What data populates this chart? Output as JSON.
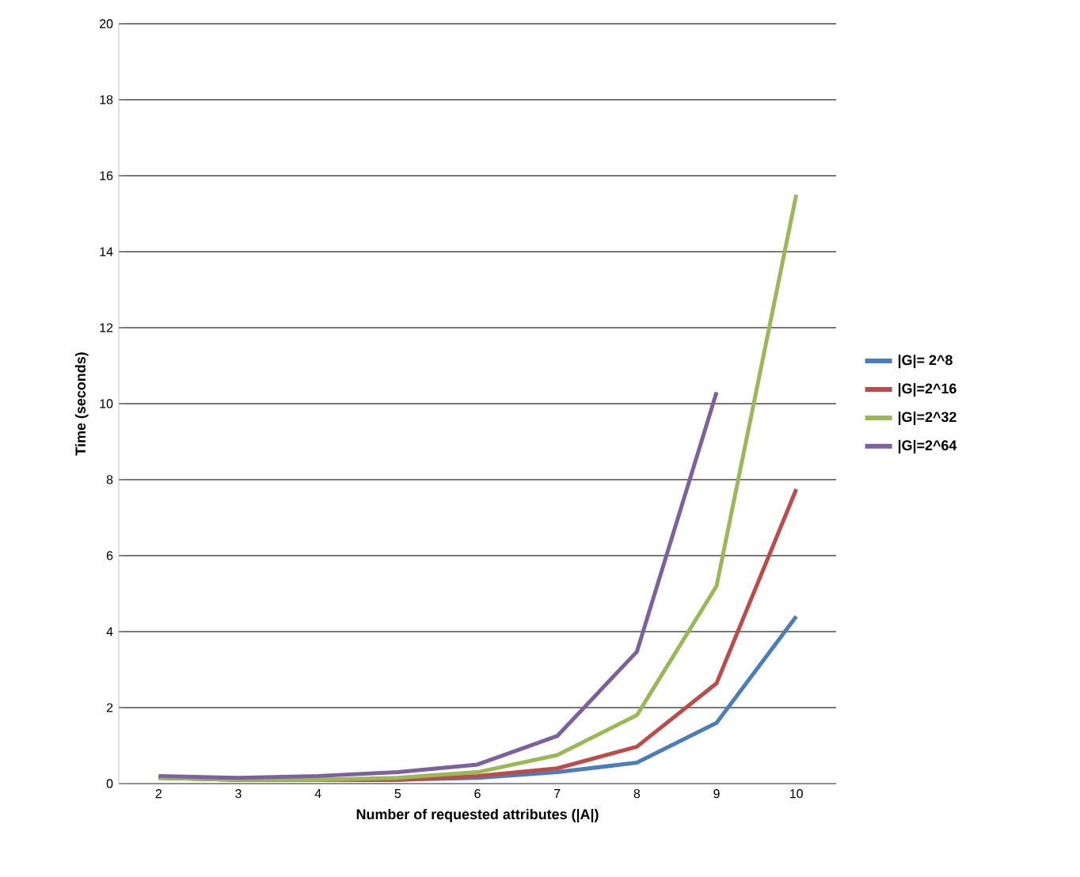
{
  "chart_data": {
    "type": "line",
    "xlabel": "Number of requested attributes (|A|)",
    "ylabel": "Time (seconds)",
    "categories": [
      "2",
      "3",
      "4",
      "5",
      "6",
      "7",
      "8",
      "9",
      "10"
    ],
    "series": [
      {
        "name": "|G|= 2^8",
        "color": "#4a7ebb",
        "values": [
          0.15,
          0.1,
          0.1,
          0.1,
          0.15,
          0.3,
          0.55,
          1.6,
          4.4
        ]
      },
      {
        "name": "|G|=2^16",
        "color": "#be4b48",
        "values": [
          0.15,
          0.1,
          0.1,
          0.1,
          0.2,
          0.4,
          0.97,
          2.64,
          7.75
        ]
      },
      {
        "name": "|G|=2^32",
        "color": "#98b954",
        "values": [
          0.15,
          0.1,
          0.1,
          0.15,
          0.3,
          0.75,
          1.8,
          5.2,
          15.5
        ]
      },
      {
        "name": "|G|=2^64",
        "color": "#7d60a0",
        "values": [
          0.2,
          0.15,
          0.2,
          0.3,
          0.5,
          1.25,
          3.47,
          10.3,
          null
        ]
      }
    ],
    "ylim": [
      0,
      20
    ],
    "yticks": [
      0,
      2,
      4,
      6,
      8,
      10,
      12,
      14,
      16,
      18,
      20
    ],
    "grid": "y",
    "legend": "right",
    "marker": "none",
    "line_style": "solid"
  }
}
